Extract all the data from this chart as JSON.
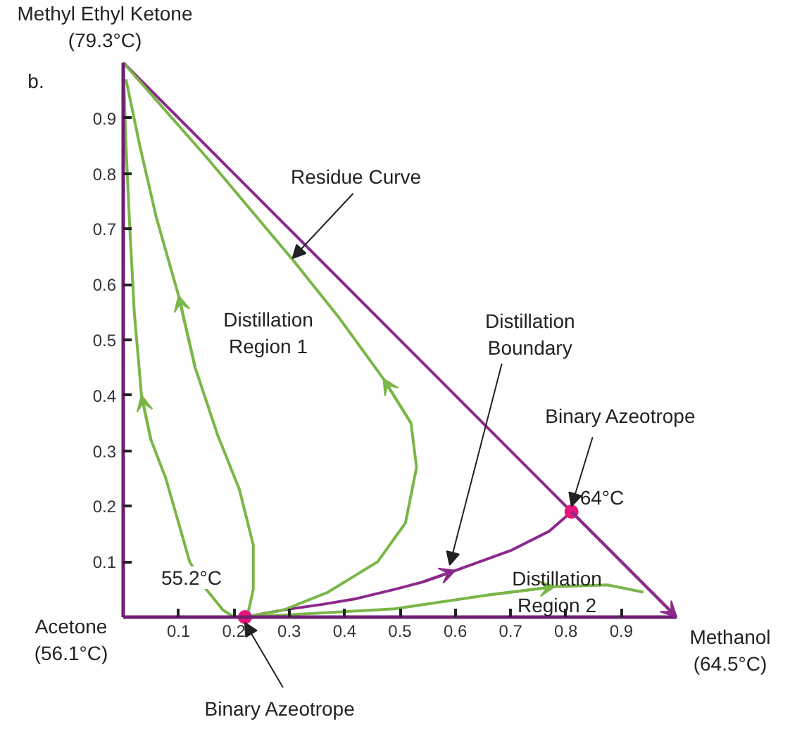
{
  "chart_data": {
    "type": "line",
    "xlim": [
      0,
      1
    ],
    "ylim": [
      0,
      1
    ],
    "xticks": [
      0.1,
      0.2,
      0.3,
      0.4,
      0.5,
      0.6,
      0.7,
      0.8,
      0.9
    ],
    "yticks": [
      0.1,
      0.2,
      0.3,
      0.4,
      0.5,
      0.6,
      0.7,
      0.8,
      0.9
    ],
    "grid": false,
    "series": [
      {
        "color": "#8b2a8b",
        "x": [
          0,
          0.81,
          1
        ],
        "values": [
          1,
          0.19,
          0
        ]
      },
      {
        "color": "#8b2a8b",
        "x": [
          0.22,
          0.29,
          0.36,
          0.42,
          0.49,
          0.54,
          0.6,
          0.7,
          0.77,
          0.81
        ],
        "values": [
          0,
          0.013,
          0.023,
          0.033,
          0.05,
          0.063,
          0.084,
          0.12,
          0.155,
          0.19
        ]
      },
      {
        "color": "#7ab648",
        "x": [
          0.22,
          0.29,
          0.37,
          0.46,
          0.51,
          0.53,
          0.52,
          0.47,
          0.39,
          0.31,
          0.15,
          0
        ],
        "values": [
          0,
          0.013,
          0.045,
          0.1,
          0.17,
          0.27,
          0.35,
          0.43,
          0.54,
          0.64,
          0.83,
          1
        ]
      },
      {
        "color": "#7ab648",
        "x": [
          0.225,
          0.235,
          0.235,
          0.21,
          0.17,
          0.13,
          0.1,
          0.06,
          0.03,
          0.005
        ],
        "values": [
          0.005,
          0.05,
          0.13,
          0.23,
          0.33,
          0.45,
          0.58,
          0.72,
          0.85,
          0.97
        ]
      },
      {
        "color": "#7ab648",
        "x": [
          0.2,
          0.18,
          0.15,
          0.12,
          0.1,
          0.077,
          0.05,
          0.033,
          0.02,
          0.012,
          0.005,
          0
        ],
        "values": [
          0,
          0.013,
          0.05,
          0.1,
          0.17,
          0.25,
          0.32,
          0.4,
          0.55,
          0.7,
          0.85,
          1
        ]
      },
      {
        "color": "#7ab648",
        "x": [
          0.22,
          0.35,
          0.49,
          0.66,
          0.78,
          0.875,
          0.94
        ],
        "values": [
          0,
          0.007,
          0.015,
          0.04,
          0.055,
          0.058,
          0.045
        ]
      },
      {
        "type": "scatter",
        "marker": "circle",
        "color": "#e6157a",
        "x": [
          0.22,
          0.81
        ],
        "values": [
          0,
          0.19
        ]
      }
    ],
    "annotations": [
      "b.",
      {
        "text": "Methyl Ethyl Ketone\n(79.3°C)",
        "x": 0,
        "y": 1
      },
      "Acetone\n(56.1°C)",
      {
        "text": "Methanol\n(64.5°C)",
        "x": 1,
        "y": 0
      },
      {
        "text": "Residue Curve",
        "x": 0.306,
        "y": 0.637
      },
      "Distillation\nRegion 1",
      {
        "text": "Distillation\nBoundary",
        "x": 0.59,
        "y": 0.084
      },
      {
        "text": "Binary Azeotrope",
        "x": 0.81,
        "y": 0.19
      },
      {
        "text": "64°C",
        "x": 0.81,
        "y": 0.19
      },
      {
        "text": "55.2°C",
        "x": 0.22,
        "y": 0
      },
      {
        "text": "Binary Azeotrope",
        "x": 0.22,
        "y": 0
      },
      "Distillation\nRegion 2"
    ]
  }
}
